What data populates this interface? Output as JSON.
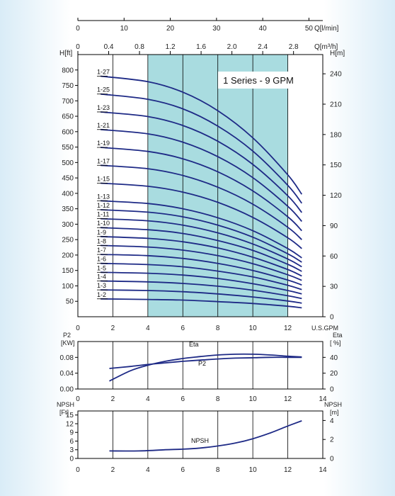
{
  "chart_data": [
    {
      "type": "line",
      "title": "1 Series - 9 GPM",
      "xlabel": "U.S.GPM",
      "xlim": [
        0,
        14
      ],
      "x_ticks": [
        "0",
        "2",
        "4",
        "6",
        "8",
        "10",
        "12"
      ],
      "shaded_range": [
        4,
        12
      ],
      "ylabel_left": "H[ft]",
      "ylim_left": [
        0,
        850
      ],
      "y_ticks_left": [
        "50",
        "100",
        "150",
        "200",
        "250",
        "300",
        "350",
        "400",
        "450",
        "500",
        "550",
        "600",
        "650",
        "700",
        "750",
        "800"
      ],
      "ylabel_right": "H[m]",
      "ylim_right": [
        0,
        259
      ],
      "y_ticks_right": [
        "0",
        "30",
        "60",
        "90",
        "120",
        "150",
        "180",
        "210",
        "240"
      ],
      "top_axis_1": {
        "label": "Q[l/min]",
        "lim": [
          0,
          53
        ],
        "ticks": [
          "0",
          "10",
          "20",
          "30",
          "40",
          "50"
        ]
      },
      "top_axis_2": {
        "label": "Q[m³/h]",
        "lim": [
          0,
          3.18
        ],
        "ticks": [
          "0",
          "0.4",
          "0.8",
          "1.2",
          "1.6",
          "2.0",
          "2.4",
          "2.8"
        ]
      },
      "series": [
        {
          "name": "1-27",
          "stages": 27,
          "x": [
            1.3,
            4,
            6,
            8,
            10,
            12,
            12.8
          ],
          "y": [
            780,
            762,
            728,
            668,
            580,
            460,
            397
          ]
        },
        {
          "name": "1-25",
          "stages": 25,
          "x": [
            1.3,
            4,
            6,
            8,
            10,
            12,
            12.8
          ],
          "y": [
            722,
            705,
            674,
            618,
            537,
            426,
            368
          ]
        },
        {
          "name": "1-23",
          "stages": 23,
          "x": [
            1.3,
            4,
            6,
            8,
            10,
            12,
            12.8
          ],
          "y": [
            664,
            649,
            620,
            569,
            494,
            392,
            338
          ]
        },
        {
          "name": "1-21",
          "stages": 21,
          "x": [
            1.3,
            4,
            6,
            8,
            10,
            12,
            12.8
          ],
          "y": [
            607,
            593,
            566,
            519,
            451,
            358,
            309
          ]
        },
        {
          "name": "1-19",
          "stages": 19,
          "x": [
            1.3,
            4,
            6,
            8,
            10,
            12,
            12.8
          ],
          "y": [
            549,
            536,
            512,
            470,
            408,
            324,
            279
          ]
        },
        {
          "name": "1-17",
          "stages": 17,
          "x": [
            1.3,
            4,
            6,
            8,
            10,
            12,
            12.8
          ],
          "y": [
            491,
            480,
            458,
            420,
            365,
            290,
            250
          ]
        },
        {
          "name": "1-15",
          "stages": 15,
          "x": [
            1.3,
            4,
            6,
            8,
            10,
            12,
            12.8
          ],
          "y": [
            433,
            423,
            404,
            371,
            322,
            256,
            221
          ]
        },
        {
          "name": "1-13",
          "stages": 13,
          "x": [
            1.3,
            4,
            6,
            8,
            10,
            12,
            12.8
          ],
          "y": [
            376,
            367,
            350,
            321,
            279,
            221,
            191
          ]
        },
        {
          "name": "1-12",
          "stages": 12,
          "x": [
            1.3,
            4,
            6,
            8,
            10,
            12,
            12.8
          ],
          "y": [
            347,
            339,
            324,
            297,
            258,
            204,
            177
          ]
        },
        {
          "name": "1-11",
          "stages": 11,
          "x": [
            1.3,
            4,
            6,
            8,
            10,
            12,
            12.8
          ],
          "y": [
            318,
            311,
            297,
            272,
            236,
            187,
            162
          ]
        },
        {
          "name": "1-10",
          "stages": 10,
          "x": [
            1.3,
            4,
            6,
            8,
            10,
            12,
            12.8
          ],
          "y": [
            289,
            282,
            270,
            247,
            215,
            170,
            147
          ]
        },
        {
          "name": "1-9",
          "stages": 9,
          "x": [
            1.3,
            4,
            6,
            8,
            10,
            12,
            12.8
          ],
          "y": [
            260,
            254,
            243,
            223,
            193,
            153,
            132
          ]
        },
        {
          "name": "1-8",
          "stages": 8,
          "x": [
            1.3,
            4,
            6,
            8,
            10,
            12,
            12.8
          ],
          "y": [
            231,
            226,
            216,
            198,
            172,
            136,
            118
          ]
        },
        {
          "name": "1-7",
          "stages": 7,
          "x": [
            1.3,
            4,
            6,
            8,
            10,
            12,
            12.8
          ],
          "y": [
            202,
            198,
            189,
            173,
            150,
            119,
            103
          ]
        },
        {
          "name": "1-6",
          "stages": 6,
          "x": [
            1.3,
            4,
            6,
            8,
            10,
            12,
            12.8
          ],
          "y": [
            173,
            169,
            162,
            148,
            129,
            102,
            88
          ]
        },
        {
          "name": "1-5",
          "stages": 5,
          "x": [
            1.3,
            4,
            6,
            8,
            10,
            12,
            12.8
          ],
          "y": [
            144,
            141,
            135,
            124,
            107,
            85,
            74
          ]
        },
        {
          "name": "1-4",
          "stages": 4,
          "x": [
            1.3,
            4,
            6,
            8,
            10,
            12,
            12.8
          ],
          "y": [
            116,
            113,
            108,
            99,
            86,
            68,
            59
          ]
        },
        {
          "name": "1-3",
          "stages": 3,
          "x": [
            1.3,
            4,
            6,
            8,
            10,
            12,
            12.8
          ],
          "y": [
            87,
            85,
            81,
            74,
            64,
            51,
            44
          ]
        },
        {
          "name": "1-2",
          "stages": 2,
          "x": [
            1.3,
            4,
            6,
            8,
            10,
            12,
            12.8
          ],
          "y": [
            58,
            56,
            54,
            49,
            43,
            34,
            29
          ]
        }
      ]
    },
    {
      "type": "line",
      "xlim": [
        0,
        14
      ],
      "x_ticks": [
        "0",
        "2",
        "4",
        "6",
        "8",
        "10",
        "12",
        "14"
      ],
      "ylabel_left": "P2\n[KW]",
      "ylim_left": [
        0,
        0.12
      ],
      "y_ticks_left": [
        "0.00",
        "0.04",
        "0.08"
      ],
      "ylabel_right": "Eta\n[ %]",
      "ylim_right": [
        0,
        60
      ],
      "y_ticks_right": [
        "0",
        "20",
        "40"
      ],
      "series": [
        {
          "name": "Eta",
          "axis": "right",
          "x": [
            1.8,
            3,
            4,
            5,
            6,
            7,
            8,
            9,
            10,
            11,
            12,
            12.8
          ],
          "y": [
            10,
            23,
            30,
            35,
            38.5,
            41,
            43,
            44,
            44,
            43,
            41.5,
            40.5
          ]
        },
        {
          "name": "P2",
          "axis": "left",
          "x": [
            1.8,
            3,
            4,
            5,
            6,
            7,
            8,
            9,
            10,
            11,
            12,
            12.8
          ],
          "y": [
            0.052,
            0.057,
            0.062,
            0.066,
            0.07,
            0.073,
            0.076,
            0.078,
            0.079,
            0.08,
            0.08,
            0.08
          ]
        }
      ]
    },
    {
      "type": "line",
      "xlim": [
        0,
        14
      ],
      "x_ticks": [
        "0",
        "2",
        "4",
        "6",
        "8",
        "10",
        "12",
        "14"
      ],
      "ylabel_left": "NPSH\n[Ft]",
      "ylim_left": [
        0,
        16.4
      ],
      "y_ticks_left": [
        "0",
        "3",
        "6",
        "9",
        "12",
        "15"
      ],
      "ylabel_right": "NPSH\n[m]",
      "ylim_right": [
        0,
        5
      ],
      "y_ticks_right": [
        "0",
        "2",
        "4"
      ],
      "series": [
        {
          "name": "NPSH",
          "x": [
            1.8,
            3.5,
            5,
            6,
            7,
            8,
            9,
            10,
            11,
            12,
            12.8
          ],
          "y": [
            2.6,
            2.6,
            3.0,
            3.2,
            3.6,
            4.3,
            5.3,
            6.8,
            8.8,
            11.2,
            13.0
          ]
        }
      ]
    }
  ]
}
